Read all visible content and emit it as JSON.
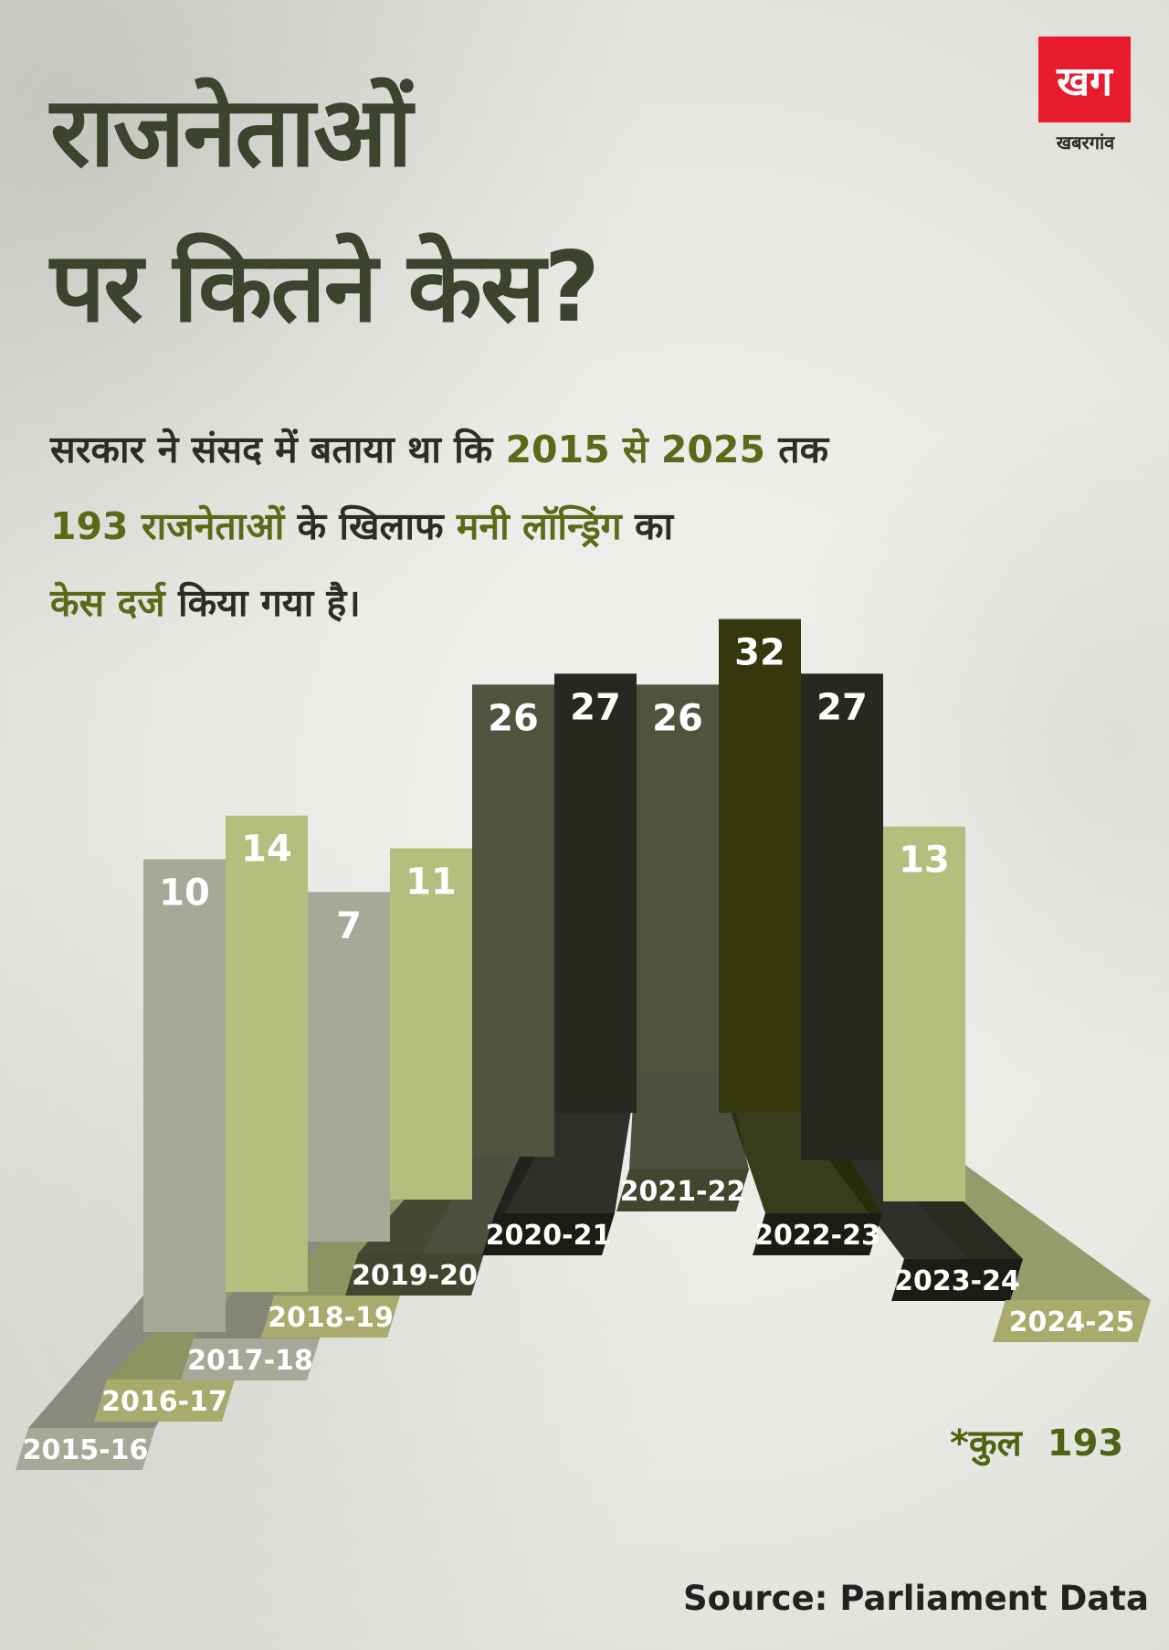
{
  "title": {
    "line1": "राजनेताओं",
    "line2": "पर कितने केस?"
  },
  "logo": {
    "mark": "खग",
    "name": "खबरगांव"
  },
  "description": {
    "line1_a": "सरकार ने संसद में बताया था कि ",
    "line1_b": "2015 से 2025",
    "line1_c": " तक",
    "line2_a": "193 राजनेताओं",
    "line2_b": " के खिलाफ ",
    "line2_c": "मनी लॉन्ड्रिंग",
    "line2_d": " का",
    "line3_a": "केस दर्ज",
    "line3_b": " किया गया है।"
  },
  "total": {
    "label": "*कुल",
    "value": "193"
  },
  "source": "Source: Parliament Data",
  "colors": {
    "title": "#3c432e",
    "highlight": "#5a6a18",
    "logo_red": "#e81c2c",
    "gray": "#a8a898",
    "light_green": "#b3bf7d",
    "dark_gray": "#50543e",
    "near_black": "#272820",
    "dark_olive": "#35380c"
  },
  "chart_data": {
    "type": "bar",
    "title": "",
    "xlabel": "",
    "ylabel": "",
    "ylim": [
      0,
      35
    ],
    "grid": false,
    "legend": "none",
    "categories": [
      "2015-16",
      "2016-17",
      "2017-18",
      "2018-19",
      "2019-20",
      "2020-21",
      "2021-22",
      "2022-23",
      "2023-24",
      "2024-25"
    ],
    "values": [
      10,
      14,
      7,
      11,
      26,
      27,
      26,
      32,
      27,
      13
    ],
    "bar_colors": [
      "#a8a898",
      "#b3bf7d",
      "#a8a898",
      "#b3bf7d",
      "#50543e",
      "#272820",
      "#50543e",
      "#35380c",
      "#272820",
      "#b3bf7d"
    ]
  }
}
